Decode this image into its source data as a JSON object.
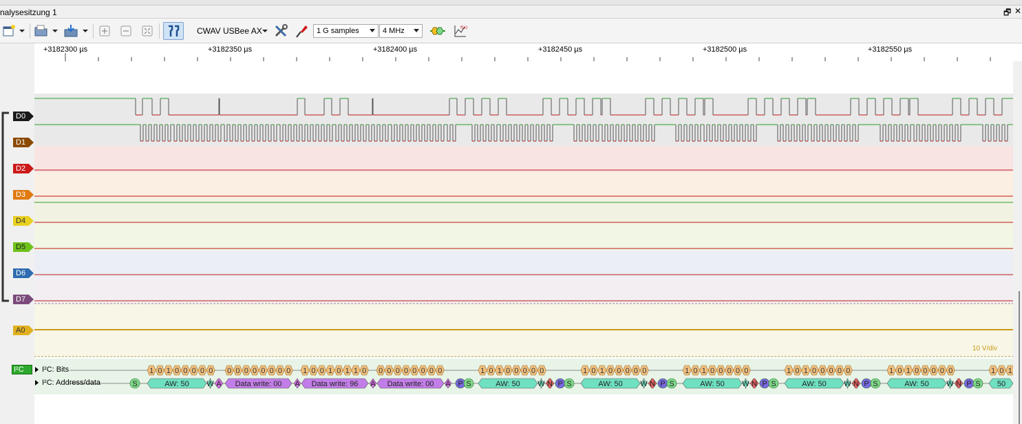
{
  "window": {
    "title": "nalysesitzung 1",
    "restore_symbol": "🗗",
    "close_symbol": "✕"
  },
  "toolbar": {
    "device": "CWAV USBee AX",
    "samples": "1 G samples",
    "rate": "4 MHz",
    "icons": [
      "new-session-icon",
      "open-folder-icon",
      "save-icon",
      "zoom-in-icon",
      "zoom-out-icon",
      "zoom-fit-icon",
      "cursors-icon",
      "configure-device-icon",
      "probe-icon",
      "run-icon",
      "math-icon"
    ]
  },
  "ruler": {
    "labels": [
      "+3182300 µs",
      "+3182350 µs",
      "+3182400 µs",
      "+3182450 µs",
      "+3182500 µs",
      "+3182550 µs"
    ]
  },
  "channels": [
    {
      "name": "D0",
      "color": "#1a1a1a"
    },
    {
      "name": "D1",
      "color": "#8b4a00"
    },
    {
      "name": "D2",
      "color": "#cc1a1a"
    },
    {
      "name": "D3",
      "color": "#e07a10"
    },
    {
      "name": "D4",
      "color": "#e8d020"
    },
    {
      "name": "D5",
      "color": "#6fc21a"
    },
    {
      "name": "D6",
      "color": "#2e6bb0"
    },
    {
      "name": "D7",
      "color": "#7a4a7a"
    }
  ],
  "analog": {
    "name": "A0",
    "color": "#e0b020",
    "div_label": "10 V/div"
  },
  "decoder": {
    "name": "I²C",
    "color": "#2ea82e",
    "rows": [
      "I²C: Bits",
      "I²C: Address/data"
    ],
    "bits": [
      {
        "bits": [
          "1",
          "0",
          "1",
          "0",
          "0",
          "0",
          "0",
          "0"
        ]
      },
      {
        "bits": [
          "0",
          "0",
          "0",
          "0",
          "0",
          "0",
          "0",
          "0"
        ]
      },
      {
        "bits": [
          "1",
          "0",
          "0",
          "1",
          "0",
          "1",
          "1",
          "0"
        ]
      },
      {
        "bits": [
          "0",
          "0",
          "0",
          "0",
          "0",
          "0",
          "0",
          "0"
        ]
      },
      {
        "bits": [
          "1",
          "0",
          "1",
          "0",
          "0",
          "0",
          "0",
          "0"
        ]
      },
      {
        "bits": [
          "1",
          "0",
          "1",
          "0",
          "0",
          "0",
          "0",
          "0"
        ]
      },
      {
        "bits": [
          "1",
          "0",
          "1",
          "0",
          "0",
          "0",
          "0",
          "0"
        ]
      },
      {
        "bits": [
          "1",
          "0",
          "1",
          "0",
          "0",
          "0",
          "0",
          "0"
        ]
      },
      {
        "bits": [
          "1",
          "0",
          "1",
          "0",
          "0",
          "0",
          "0",
          "0"
        ]
      },
      {
        "bits": [
          "1",
          "0",
          "1"
        ]
      }
    ],
    "annotations": [
      {
        "text": "S",
        "kind": "start"
      },
      {
        "text": "AW: 50",
        "kind": "addr"
      },
      {
        "text": "W",
        "kind": "rw"
      },
      {
        "text": "A",
        "kind": "ack"
      },
      {
        "text": "Data write: 00",
        "kind": "data"
      },
      {
        "text": "A",
        "kind": "ack"
      },
      {
        "text": "Data write: 96",
        "kind": "data"
      },
      {
        "text": "A",
        "kind": "ack"
      },
      {
        "text": "Data write: 00",
        "kind": "data"
      },
      {
        "text": "A",
        "kind": "ack"
      },
      {
        "text": "P",
        "kind": "stop"
      },
      {
        "text": "S",
        "kind": "start"
      },
      {
        "text": "AW: 50",
        "kind": "addr"
      },
      {
        "text": "W",
        "kind": "rw"
      },
      {
        "text": "N",
        "kind": "nack"
      },
      {
        "text": "P",
        "kind": "stop"
      },
      {
        "text": "S",
        "kind": "start"
      },
      {
        "text": "AW: 50",
        "kind": "addr"
      },
      {
        "text": "W",
        "kind": "rw"
      },
      {
        "text": "N",
        "kind": "nack"
      },
      {
        "text": "P",
        "kind": "stop"
      },
      {
        "text": "S",
        "kind": "start"
      },
      {
        "text": "AW: 50",
        "kind": "addr"
      },
      {
        "text": "W",
        "kind": "rw"
      },
      {
        "text": "N",
        "kind": "nack"
      },
      {
        "text": "P",
        "kind": "stop"
      },
      {
        "text": "S",
        "kind": "start"
      },
      {
        "text": "AW: 50",
        "kind": "addr"
      },
      {
        "text": "W",
        "kind": "rw"
      },
      {
        "text": "N",
        "kind": "nack"
      },
      {
        "text": "P",
        "kind": "stop"
      },
      {
        "text": "S",
        "kind": "start"
      },
      {
        "text": "AW: 50",
        "kind": "addr"
      },
      {
        "text": "W",
        "kind": "rw"
      },
      {
        "text": "N",
        "kind": "nack"
      },
      {
        "text": "P",
        "kind": "stop"
      },
      {
        "text": "S",
        "kind": "start"
      },
      {
        "text": "50",
        "kind": "addr"
      }
    ],
    "kind_colors": {
      "start": "#7fd98a",
      "addr": "#6fe0c0",
      "rw": "#6fe0c0",
      "ack": "#d070e0",
      "nack": "#e06060",
      "stop": "#7a6ae0",
      "data": "#c27ee8",
      "bit": "#f0c080"
    }
  }
}
